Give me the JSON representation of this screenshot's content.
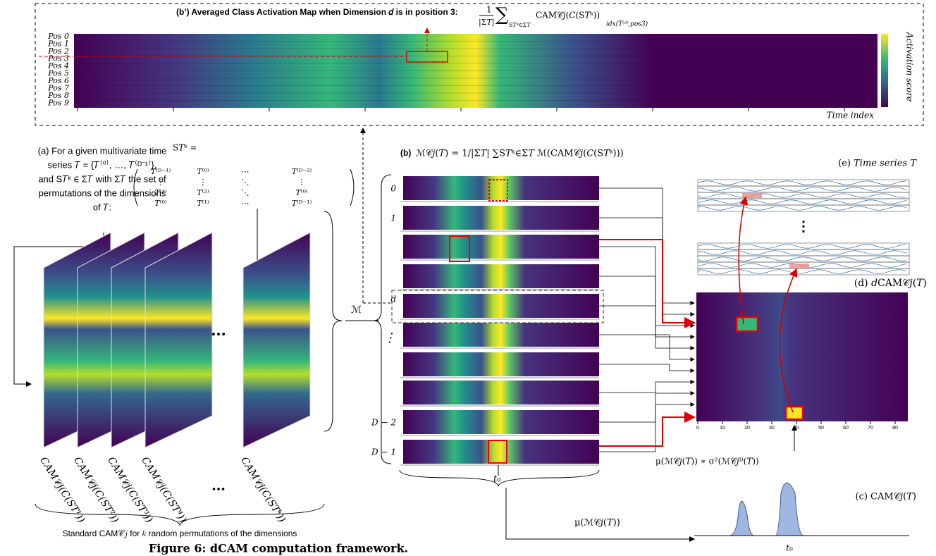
{
  "caption": "Figure 6: dCAM computation framework.",
  "panel_b_prime": {
    "title": "(b’) Averaged Class Activation Map when Dimension 𝑑 is in position 3:",
    "formula_num": "1",
    "formula_den": "|Σ𝑇|",
    "formula_sum": "∑",
    "formula_sub": "S𝑇ᵏ∈Σ𝑇",
    "formula_body": "CAM𝒞𝑗(𝐶(S𝑇ᵏ))",
    "formula_idx": "idx(𝑇⁽ᵈ⁾,pos3)",
    "rows": [
      "Pos 0",
      "Pos 1",
      "Pos 2",
      "Pos 3",
      "Pos 4",
      "Pos 5",
      "Pos 6",
      "Pos 7",
      "Pos 8",
      "Pos 9"
    ],
    "colorbar_label": "Activation score",
    "x_label": "Time index"
  },
  "panel_a": {
    "lines": [
      "(a) For a given multivariate time",
      "series 𝑇 = {𝑇⁽⁰⁾, …, 𝑇⁽ᴰ⁻¹⁾},",
      "and S𝑇ᵏ ∈ Σ𝑇 with Σ𝑇 the set of",
      "permutations of  the dimensions",
      "of 𝑇:"
    ],
    "matrix_label": "S𝑇ᵏ =",
    "matrix": [
      [
        "𝑇⁽ᴰ⁻¹⁾",
        "𝑇⁽⁰⁾",
        "⋯",
        "𝑇⁽ᴰ⁻²⁾"
      ],
      [
        "⋮",
        "⋮",
        "⋱",
        "⋮"
      ],
      [
        "𝑇⁽¹⁾",
        "𝑇⁽²⁾",
        "⋱",
        "𝑇⁽⁰⁾"
      ],
      [
        "𝑇⁽⁰⁾",
        "𝑇⁽¹⁾",
        "⋯",
        "𝑇⁽ᴰ⁻¹⁾"
      ]
    ],
    "frame_ellipsis": "…",
    "cam_labels": [
      "CAM𝒞𝑗(𝐶(S𝑇¹))",
      "CAM𝒞𝑗(𝐶(S𝑇²))",
      "CAM𝒞𝑗(𝐶(S𝑇³))",
      "CAM𝒞𝑗(𝐶(S𝑇⁴))",
      "CAM𝒞𝑗(𝐶(S𝑇ᵏ))"
    ],
    "label_ellipsis": "…",
    "footer": "Standard CAM𝒞𝑗 for 𝑘 random permutations of the dimensions",
    "operator": "ℳ"
  },
  "panel_b": {
    "tag": "(b)",
    "formula": "ℳ𝒞𝑗(𝑇) = 1/|Σ𝑇| ∑S𝑇ᵏ∈Σ𝑇 ℳ(CAM𝒞𝑗(𝐶(S𝑇ᵏ)))",
    "row_labels": [
      "0",
      "1",
      "𝑑",
      "⋮",
      "𝐷 − 2",
      "𝐷 − 1"
    ],
    "t0": "𝑡₀"
  },
  "panel_e": {
    "title": "(e) 𝑇𝑖𝑚𝑒 𝑠𝑒𝑟𝑖𝑒𝑠 𝑇",
    "ellipsis": "⋮"
  },
  "panel_d": {
    "title": "(d) 𝑑CAM𝒞𝑗(𝑇)",
    "xticks": [
      "0",
      "10",
      "20",
      "30",
      "40",
      "50",
      "60",
      "70",
      "80"
    ],
    "formula": "μ(ℳ𝒞𝑗(𝑇)) ∗ σ²(ℳ𝒞𝑗ᴰ(𝑇))"
  },
  "panel_c": {
    "title": "(c) CAM𝒞𝑗(𝑇)",
    "formula": "μ(ℳ𝒞𝑗(𝑇))",
    "t0": "𝑡₀"
  }
}
